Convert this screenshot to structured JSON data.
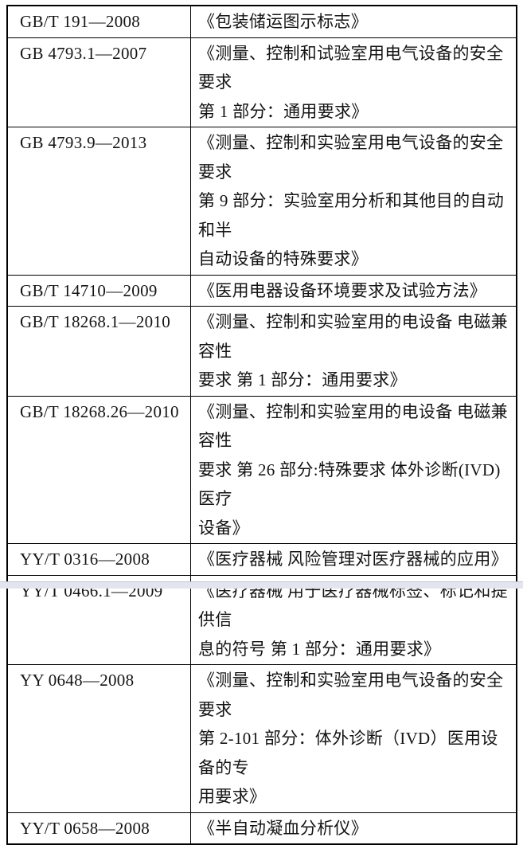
{
  "document": {
    "type": "standards-reference-table",
    "columns": [
      "standard_code",
      "standard_title"
    ],
    "colors": {
      "table_border": "#000000",
      "text": "#141414",
      "page_background": "#ffffff",
      "bottom_strip": "#e4e4ee"
    }
  },
  "table": {
    "rows": [
      {
        "code": "GB/T 191—2008",
        "title": "《包装储运图示标志》"
      },
      {
        "code": "GB 4793.1—2007",
        "title": "《测量、控制和试验室用电气设备的安全要求\n第 1 部分：通用要求》"
      },
      {
        "code": "GB 4793.9—2013",
        "title": "《测量、控制和实验室用电气设备的安全要求\n第 9 部分：实验室用分析和其他目的自动和半\n自动设备的特殊要求》"
      },
      {
        "code": "GB/T 14710—2009",
        "title": "《医用电器设备环境要求及试验方法》"
      },
      {
        "code": "GB/T 18268.1—2010",
        "title": "《测量、控制和实验室用的电设备 电磁兼容性\n要求 第 1 部分：通用要求》"
      },
      {
        "code": "GB/T 18268.26—2010",
        "title": "《测量、控制和实验室用的电设备 电磁兼容性\n要求 第 26 部分:特殊要求 体外诊断(IVD)医疗\n设备》"
      },
      {
        "code": "YY/T 0316—2008",
        "title": "《医疗器械 风险管理对医疗器械的应用》"
      },
      {
        "code": "YY/T 0466.1—2009",
        "title": "《医疗器械 用于医疗器械标签、标记和提供信\n息的符号 第 1 部分：通用要求》"
      },
      {
        "code": "YY 0648—2008",
        "title": "《测量、控制和实验室用电气设备的安全要求\n第 2-101 部分：体外诊断（IVD）医用设备的专\n用要求》"
      },
      {
        "code": "YY/T 0658—2008",
        "title": "《半自动凝血分析仪》"
      }
    ]
  }
}
